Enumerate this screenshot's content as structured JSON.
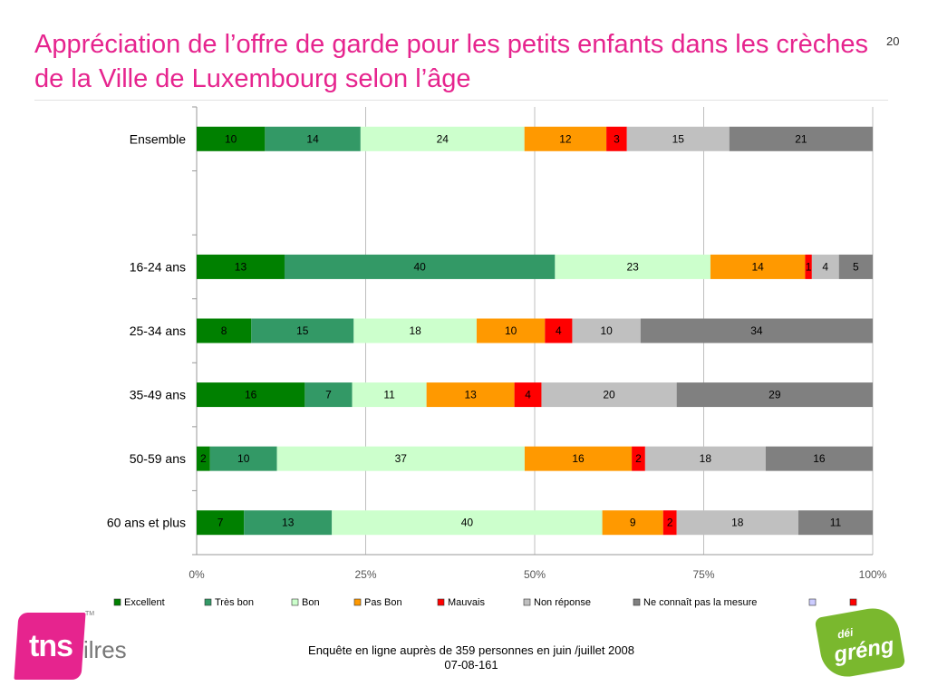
{
  "slide": {
    "title": "Appréciation de l’offre de garde pour les petits enfants dans les crèches de la Ville de Luxembourg selon l’âge",
    "page_number": "20",
    "footer_line1": "Enquête en ligne auprès de 359 personnes en juin /juillet 2008",
    "footer_line2": "07-08-161",
    "logo_left_text": "tns",
    "logo_left_suffix": "ilres",
    "logo_left_tm": "TM",
    "logo_right_small": "déi",
    "logo_right_big": "gréng"
  },
  "chart_data": {
    "type": "bar",
    "orientation": "horizontal",
    "stacked": "percent",
    "categories": [
      "Ensemble",
      "",
      "16-24 ans",
      "25-34 ans",
      "35-49 ans",
      "50-59 ans",
      "60 ans et plus"
    ],
    "series": [
      {
        "name": "Excellent",
        "color": "#008000",
        "values": [
          10,
          null,
          13,
          8,
          16,
          2,
          7
        ],
        "labels": [
          "10",
          "",
          "13",
          "8",
          "16",
          "2",
          "7"
        ]
      },
      {
        "name": "Très bon",
        "color": "#339966",
        "values": [
          14,
          null,
          40,
          15,
          7,
          10,
          13
        ],
        "labels": [
          "14",
          "",
          "40",
          "15",
          "7",
          "10",
          "13"
        ]
      },
      {
        "name": "Bon",
        "color": "#ccffcc",
        "values": [
          24,
          null,
          23,
          18,
          11,
          37,
          40
        ],
        "labels": [
          "24",
          "",
          "23",
          "18",
          "11",
          "37",
          "40"
        ]
      },
      {
        "name": "Pas Bon",
        "color": "#ff9900",
        "values": [
          12,
          null,
          14,
          10,
          13,
          16,
          9
        ],
        "labels": [
          "12",
          "",
          "14",
          "10",
          "13",
          "16",
          "9"
        ]
      },
      {
        "name": "Mauvais",
        "color": "#ff0000",
        "values": [
          3,
          null,
          1,
          4,
          4,
          2,
          2
        ],
        "labels": [
          "3",
          "",
          "1",
          "4",
          "4",
          "2",
          "2"
        ]
      },
      {
        "name": "Non réponse",
        "color": "#c0c0c0",
        "values": [
          15,
          null,
          4,
          10,
          20,
          18,
          18
        ],
        "labels": [
          "15",
          "",
          "4",
          "10",
          "20",
          "18",
          "18"
        ]
      },
      {
        "name": "Ne connaît pas la mesure",
        "color": "#808080",
        "values": [
          21,
          null,
          5,
          34,
          29,
          16,
          11
        ],
        "labels": [
          "21",
          "",
          "5",
          "34",
          "29",
          "16",
          "11"
        ]
      }
    ],
    "extra_legend_markers": [
      {
        "name": "",
        "color": "#ccccff"
      },
      {
        "name": "",
        "color": "#ff0000"
      }
    ],
    "x_ticks": [
      "0%",
      "25%",
      "50%",
      "75%",
      "100%"
    ],
    "xlim": [
      0,
      100
    ],
    "grid": true,
    "legend_position": "bottom"
  }
}
